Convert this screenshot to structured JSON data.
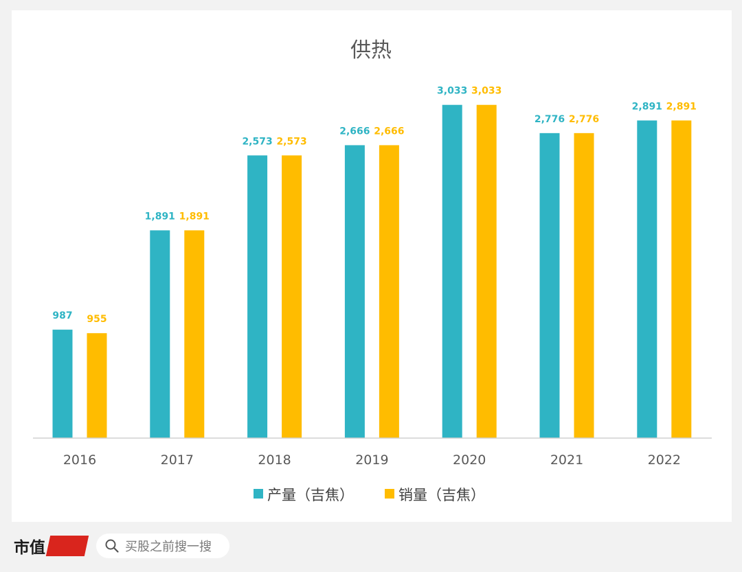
{
  "chart_data": {
    "type": "bar",
    "title": "供热",
    "categories": [
      "2016",
      "2017",
      "2018",
      "2019",
      "2020",
      "2021",
      "2022"
    ],
    "series": [
      {
        "name": "产量（吉焦）",
        "color": "#2fb4c4",
        "values": [
          987,
          1891,
          2573,
          2666,
          3033,
          2776,
          2891
        ],
        "labels": [
          "987",
          "1,891",
          "2,573",
          "2,666",
          "3,033",
          "2,776",
          "2,891"
        ]
      },
      {
        "name": "销量（吉焦）",
        "color": "#ffbc00",
        "values": [
          955,
          1891,
          2573,
          2666,
          3033,
          2776,
          2891
        ],
        "labels": [
          "955",
          "1,891",
          "2,573",
          "2,666",
          "3,033",
          "2,776",
          "2,891"
        ]
      }
    ],
    "ylim": [
      0,
      3300
    ],
    "grid": false,
    "legend": "bottom"
  },
  "footer": {
    "brand": "市值",
    "search_placeholder": "买股之前搜一搜",
    "search_icon": "search-icon",
    "brand_icon": "brand-seal-icon"
  }
}
